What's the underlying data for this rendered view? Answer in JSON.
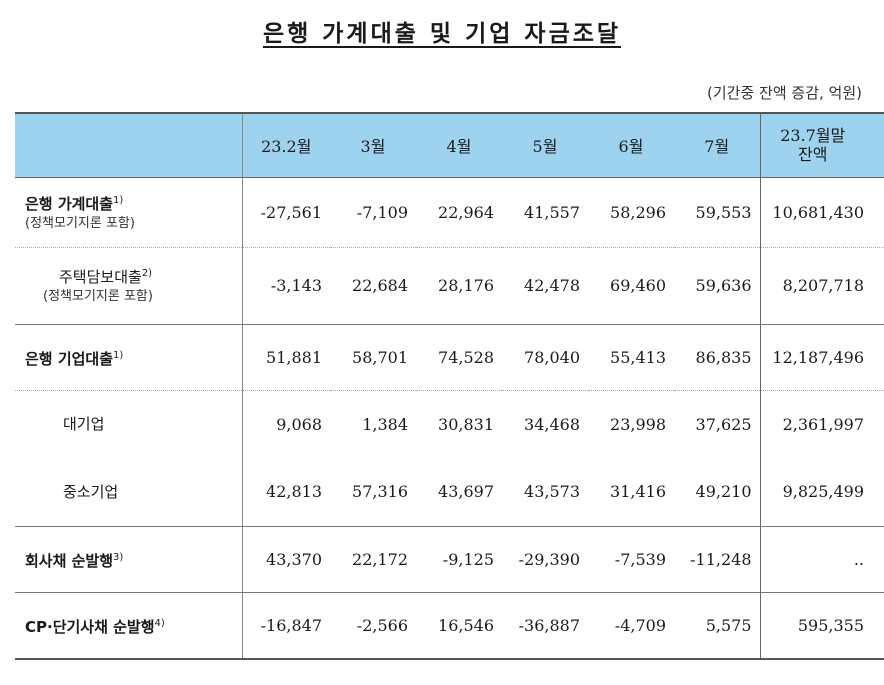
{
  "title": "은행 가계대출 및 기업 자금조달",
  "unit_note": "(기간중 잔액 증감, 억원)",
  "header": {
    "columns": [
      "23.2월",
      "3월",
      "4월",
      "5월",
      "6월",
      "7월"
    ],
    "last_line1": "23.7월말",
    "last_line2": "잔액"
  },
  "rows": [
    {
      "label": "은행 가계대출",
      "footnote": "1)",
      "sub": "(정책모기지론 포함)",
      "values": [
        "-27,561",
        "-7,109",
        "22,964",
        "41,557",
        "58,296",
        "59,553"
      ],
      "balance": "10,681,430"
    },
    {
      "label": "주택담보대출",
      "footnote": "2)",
      "sub": "(정책모기지론 포함)",
      "values": [
        "-3,143",
        "22,684",
        "28,176",
        "42,478",
        "69,460",
        "59,636"
      ],
      "balance": "8,207,718"
    },
    {
      "label": "은행 기업대출",
      "footnote": "1)",
      "sub": "",
      "values": [
        "51,881",
        "58,701",
        "74,528",
        "78,040",
        "55,413",
        "86,835"
      ],
      "balance": "12,187,496"
    },
    {
      "label": "대기업",
      "footnote": "",
      "sub": "",
      "values": [
        "9,068",
        "1,384",
        "30,831",
        "34,468",
        "23,998",
        "37,625"
      ],
      "balance": "2,361,997"
    },
    {
      "label": "중소기업",
      "footnote": "",
      "sub": "",
      "values": [
        "42,813",
        "57,316",
        "43,697",
        "43,573",
        "31,416",
        "49,210"
      ],
      "balance": "9,825,499"
    },
    {
      "label": "회사채 순발행",
      "footnote": "3)",
      "sub": "",
      "values": [
        "43,370",
        "22,172",
        "-9,125",
        "-29,390",
        "-7,539",
        "-11,248"
      ],
      "balance": ".."
    },
    {
      "label": "CP·단기사채 순발행",
      "footnote": "4)",
      "sub": "",
      "values": [
        "-16,847",
        "-2,566",
        "16,546",
        "-36,887",
        "-4,709",
        "5,575"
      ],
      "balance": "595,355"
    }
  ]
}
